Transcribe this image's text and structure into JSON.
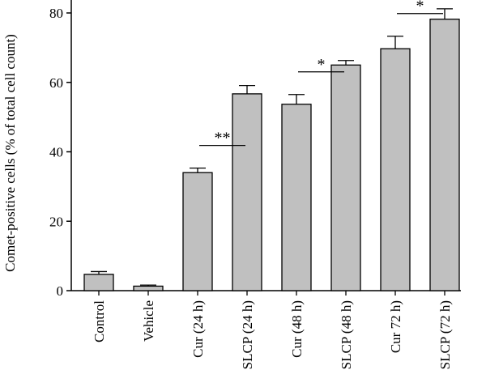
{
  "chart_data": {
    "type": "bar",
    "title": "",
    "xlabel": "",
    "ylabel": "Comet-positive cells (% of total cell count)",
    "ylim": [
      0,
      85
    ],
    "yticks": [
      0,
      20,
      40,
      60,
      80
    ],
    "grid": false,
    "bar_color": "#c0c0c0",
    "categories": [
      "Control",
      "Vehicle",
      "Cur (24 h)",
      "SLCP (24 h)",
      "Cur (48 h)",
      "SLCP (48 h)",
      "Cur 72 h)",
      "SLCP (72 h)"
    ],
    "values": [
      4.7,
      1.3,
      34.0,
      56.7,
      53.7,
      65.0,
      69.7,
      78.2
    ],
    "errors": [
      0.8,
      0.3,
      1.3,
      2.4,
      2.8,
      1.3,
      3.6,
      3.0
    ],
    "significance": [
      {
        "from": 2,
        "to": 3,
        "label": "**"
      },
      {
        "from": 4,
        "to": 5,
        "label": "*"
      },
      {
        "from": 6,
        "to": 7,
        "label": "*"
      }
    ]
  }
}
